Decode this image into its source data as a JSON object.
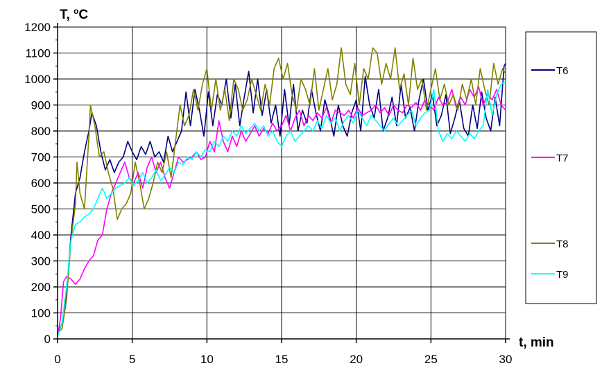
{
  "chart_data": {
    "type": "line",
    "title": "",
    "xlabel": "t, min",
    "ylabel_main": "T, ",
    "ylabel_sup": "o",
    "ylabel_unit": "C",
    "xlim": [
      0,
      30
    ],
    "ylim": [
      0,
      1200
    ],
    "xticks": [
      "0",
      "5",
      "10",
      "15",
      "20",
      "25",
      "30"
    ],
    "yticks": [
      "0",
      "100",
      "200",
      "300",
      "400",
      "500",
      "600",
      "700",
      "800",
      "900",
      "1000",
      "1100",
      "1200"
    ],
    "grid": true,
    "legend_position": "right",
    "series": [
      {
        "name": "T6",
        "color": "#000080",
        "x": [
          0,
          0.3,
          0.6,
          0.9,
          1.2,
          1.5,
          1.8,
          2.1,
          2.3,
          2.6,
          2.9,
          3.2,
          3.5,
          3.8,
          4.1,
          4.4,
          4.7,
          5.0,
          5.3,
          5.6,
          5.9,
          6.2,
          6.5,
          6.8,
          7.1,
          7.4,
          7.7,
          8.0,
          8.3,
          8.6,
          8.9,
          9.2,
          9.5,
          9.8,
          10.1,
          10.4,
          10.7,
          11.0,
          11.3,
          11.6,
          11.9,
          12.2,
          12.5,
          12.8,
          13.1,
          13.4,
          13.7,
          14.0,
          14.3,
          14.6,
          14.9,
          15.2,
          15.5,
          15.8,
          16.1,
          16.4,
          16.7,
          17.0,
          17.3,
          17.6,
          17.9,
          18.2,
          18.5,
          18.8,
          19.1,
          19.4,
          19.7,
          20.0,
          20.3,
          20.6,
          20.9,
          21.2,
          21.5,
          21.8,
          22.1,
          22.4,
          22.7,
          23.0,
          23.3,
          23.6,
          23.9,
          24.2,
          24.5,
          24.8,
          25.1,
          25.4,
          25.7,
          26.0,
          26.3,
          26.6,
          26.9,
          27.2,
          27.5,
          27.8,
          28.1,
          28.4,
          28.7,
          29.0,
          29.3,
          29.6,
          29.9,
          30.0
        ],
        "values": [
          20,
          60,
          180,
          400,
          560,
          620,
          720,
          800,
          870,
          820,
          720,
          650,
          690,
          640,
          680,
          700,
          760,
          720,
          690,
          740,
          710,
          760,
          700,
          720,
          680,
          780,
          720,
          760,
          800,
          950,
          820,
          960,
          880,
          780,
          950,
          820,
          940,
          900,
          1000,
          850,
          980,
          820,
          930,
          1030,
          870,
          1000,
          860,
          960,
          830,
          900,
          780,
          960,
          820,
          980,
          800,
          880,
          830,
          960,
          870,
          800,
          920,
          860,
          780,
          900,
          820,
          780,
          870,
          920,
          800,
          1010,
          900,
          850,
          960,
          800,
          850,
          930,
          820,
          980,
          850,
          890,
          800,
          920,
          1000,
          880,
          940,
          820,
          860,
          940,
          790,
          850,
          920,
          810,
          780,
          900,
          810,
          950,
          850,
          800,
          930,
          820,
          1050,
          1060
        ]
      },
      {
        "name": "T7",
        "color": "#ff00ff",
        "x": [
          0,
          0.2,
          0.4,
          0.6,
          0.9,
          1.2,
          1.5,
          1.8,
          2.1,
          2.4,
          2.7,
          3.0,
          3.3,
          3.6,
          3.9,
          4.2,
          4.5,
          4.8,
          5.1,
          5.4,
          5.7,
          6.0,
          6.3,
          6.6,
          6.9,
          7.2,
          7.5,
          7.8,
          8.1,
          8.4,
          8.7,
          9.0,
          9.3,
          9.6,
          9.9,
          10.2,
          10.5,
          10.8,
          11.1,
          11.4,
          11.7,
          12.0,
          12.3,
          12.6,
          12.9,
          13.2,
          13.5,
          13.8,
          14.1,
          14.4,
          14.7,
          15.0,
          15.3,
          15.6,
          15.9,
          16.2,
          16.5,
          16.8,
          17.1,
          17.4,
          17.7,
          18.0,
          18.3,
          18.6,
          18.9,
          19.2,
          19.5,
          19.8,
          20.1,
          20.4,
          20.7,
          21.0,
          21.3,
          21.6,
          21.9,
          22.2,
          22.5,
          22.8,
          23.1,
          23.4,
          23.7,
          24.0,
          24.3,
          24.6,
          24.9,
          25.2,
          25.5,
          25.8,
          26.1,
          26.4,
          26.7,
          27.0,
          27.3,
          27.6,
          27.9,
          28.2,
          28.5,
          28.8,
          29.1,
          29.4,
          29.7,
          30.0
        ],
        "values": [
          10,
          80,
          220,
          240,
          230,
          210,
          230,
          270,
          300,
          320,
          380,
          400,
          500,
          560,
          600,
          640,
          680,
          620,
          600,
          640,
          580,
          660,
          700,
          640,
          680,
          620,
          580,
          640,
          700,
          680,
          690,
          700,
          720,
          690,
          700,
          760,
          720,
          840,
          760,
          720,
          780,
          740,
          800,
          760,
          790,
          820,
          780,
          810,
          790,
          830,
          800,
          820,
          860,
          800,
          850,
          880,
          820,
          860,
          840,
          870,
          850,
          890,
          830,
          880,
          870,
          860,
          880,
          850,
          890,
          860,
          870,
          880,
          900,
          870,
          890,
          860,
          900,
          880,
          870,
          900,
          890,
          910,
          880,
          920,
          900,
          880,
          930,
          900,
          910,
          960,
          890,
          930,
          900,
          960,
          930,
          970,
          900,
          940,
          920,
          960,
          900,
          880
        ]
      },
      {
        "name": "T8",
        "color": "#808000",
        "x": [
          0,
          0.3,
          0.6,
          0.9,
          1.2,
          1.3,
          1.5,
          1.8,
          2.1,
          2.2,
          2.5,
          2.8,
          3.1,
          3.4,
          3.7,
          4.0,
          4.3,
          4.6,
          4.9,
          5.2,
          5.5,
          5.8,
          6.1,
          6.4,
          6.7,
          7.0,
          7.3,
          7.6,
          7.9,
          8.2,
          8.5,
          8.8,
          9.1,
          9.4,
          9.7,
          10.0,
          10.3,
          10.6,
          10.9,
          11.2,
          11.5,
          11.8,
          12.1,
          12.4,
          12.7,
          13.0,
          13.3,
          13.6,
          13.9,
          14.2,
          14.5,
          14.8,
          15.1,
          15.4,
          15.7,
          16.0,
          16.3,
          16.6,
          16.9,
          17.2,
          17.5,
          17.8,
          18.1,
          18.4,
          18.7,
          19.0,
          19.3,
          19.6,
          19.9,
          20.2,
          20.5,
          20.8,
          21.1,
          21.4,
          21.7,
          22.0,
          22.3,
          22.6,
          22.9,
          23.2,
          23.5,
          23.8,
          24.1,
          24.4,
          24.7,
          25.0,
          25.3,
          25.6,
          25.9,
          26.2,
          26.5,
          26.8,
          27.1,
          27.4,
          27.7,
          28.0,
          28.3,
          28.6,
          28.9,
          29.2,
          29.5,
          29.8,
          30.0
        ],
        "values": [
          20,
          40,
          150,
          380,
          520,
          680,
          560,
          500,
          780,
          900,
          820,
          700,
          720,
          640,
          580,
          460,
          500,
          520,
          560,
          680,
          600,
          500,
          540,
          600,
          680,
          640,
          720,
          620,
          760,
          900,
          820,
          860,
          960,
          880,
          980,
          1040,
          880,
          1000,
          880,
          960,
          840,
          1000,
          960,
          880,
          920,
          1000,
          940,
          880,
          980,
          900,
          1040,
          1080,
          1000,
          1060,
          940,
          880,
          1000,
          960,
          900,
          1040,
          880,
          960,
          1040,
          920,
          980,
          1120,
          980,
          940,
          1060,
          900,
          1040,
          1000,
          1120,
          1100,
          980,
          1060,
          1000,
          1120,
          960,
          1020,
          900,
          1080,
          960,
          1000,
          880,
          960,
          1040,
          920,
          980,
          900,
          940,
          880,
          980,
          920,
          1000,
          900,
          1040,
          960,
          900,
          1060,
          980,
          1040,
          1020
        ]
      },
      {
        "name": "T9",
        "color": "#00ffff",
        "x": [
          0,
          0.3,
          0.6,
          0.9,
          1.2,
          1.5,
          1.8,
          2.1,
          2.4,
          2.7,
          3.0,
          3.3,
          3.6,
          3.9,
          4.2,
          4.5,
          4.8,
          5.1,
          5.4,
          5.7,
          6.0,
          6.3,
          6.6,
          6.9,
          7.2,
          7.5,
          7.8,
          8.1,
          8.4,
          8.7,
          9.0,
          9.3,
          9.6,
          9.9,
          10.2,
          10.5,
          10.8,
          11.1,
          11.4,
          11.7,
          12.0,
          12.3,
          12.6,
          12.9,
          13.2,
          13.5,
          13.8,
          14.1,
          14.4,
          14.7,
          15.0,
          15.3,
          15.6,
          15.9,
          16.2,
          16.5,
          16.8,
          17.1,
          17.4,
          17.7,
          18.0,
          18.3,
          18.6,
          18.9,
          19.2,
          19.5,
          19.8,
          20.1,
          20.4,
          20.7,
          21.0,
          21.3,
          21.6,
          21.9,
          22.2,
          22.5,
          22.8,
          23.1,
          23.4,
          23.7,
          24.0,
          24.3,
          24.6,
          24.9,
          25.2,
          25.5,
          25.8,
          26.1,
          26.4,
          26.7,
          27.0,
          27.3,
          27.6,
          27.9,
          28.2,
          28.5,
          28.8,
          29.1,
          29.4,
          29.7,
          30.0
        ],
        "values": [
          10,
          60,
          200,
          380,
          440,
          450,
          470,
          480,
          500,
          540,
          580,
          540,
          560,
          580,
          590,
          600,
          620,
          590,
          610,
          640,
          600,
          620,
          650,
          610,
          630,
          660,
          640,
          680,
          670,
          700,
          690,
          720,
          700,
          730,
          720,
          760,
          740,
          780,
          760,
          800,
          780,
          820,
          790,
          810,
          830,
          800,
          820,
          780,
          800,
          760,
          740,
          780,
          800,
          760,
          780,
          800,
          820,
          800,
          840,
          810,
          860,
          830,
          850,
          800,
          840,
          860,
          830,
          880,
          850,
          820,
          860,
          840,
          820,
          800,
          830,
          850,
          820,
          840,
          860,
          880,
          820,
          850,
          870,
          880,
          960,
          800,
          760,
          790,
          770,
          800,
          780,
          760,
          790,
          770,
          800,
          820,
          960,
          860,
          940,
          980,
          990
        ]
      }
    ]
  }
}
